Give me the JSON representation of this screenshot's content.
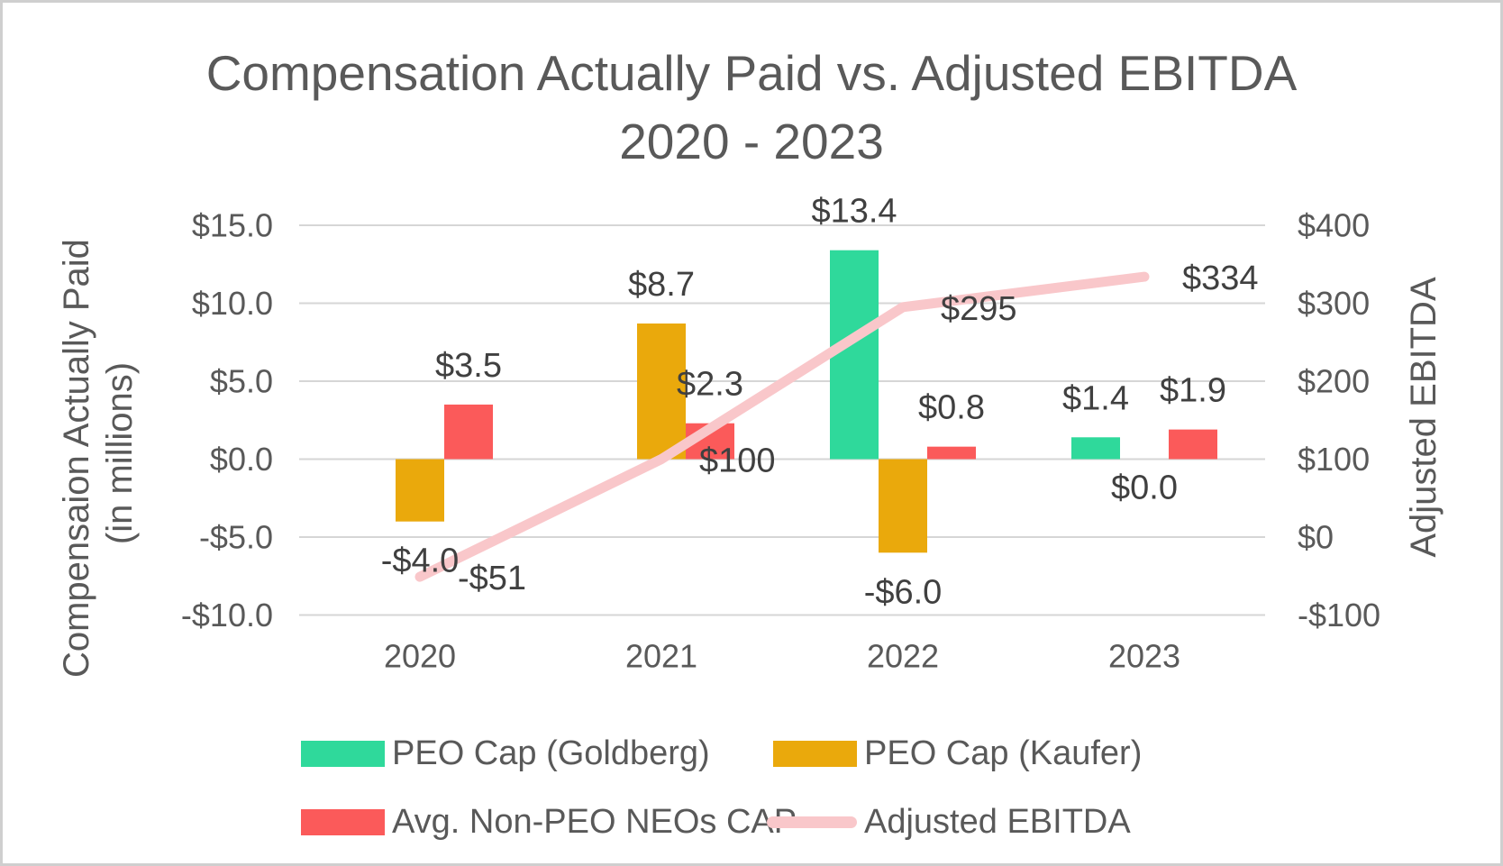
{
  "title": {
    "line1": "Compensation Actually Paid vs. Adjusted EBITDA",
    "line2": "2020 - 2023"
  },
  "chart_data": {
    "type": "combo-bar-line",
    "categories": [
      "2020",
      "2021",
      "2022",
      "2023"
    ],
    "series": [
      {
        "name": "PEO Cap (Goldberg)",
        "type": "bar",
        "axis": "left",
        "color": "#2FD99B",
        "values": [
          null,
          null,
          13.4,
          1.4
        ],
        "value_labels": [
          null,
          null,
          "$13.4",
          "$1.4"
        ]
      },
      {
        "name": "PEO Cap (Kaufer)",
        "type": "bar",
        "axis": "left",
        "color": "#EAA90C",
        "values": [
          -4.0,
          8.7,
          -6.0,
          0.0
        ],
        "value_labels": [
          "-$4.0",
          "$8.7",
          "-$6.0",
          "$0.0"
        ]
      },
      {
        "name": "Avg. Non-PEO NEOs CAP",
        "type": "bar",
        "axis": "left",
        "color": "#FB5A5A",
        "values": [
          3.5,
          2.3,
          0.8,
          1.9
        ],
        "value_labels": [
          "$3.5",
          "$2.3",
          "$0.8",
          "$1.9"
        ]
      },
      {
        "name": "Adjusted EBITDA",
        "type": "line",
        "axis": "right",
        "color": "#F9C7CA",
        "values": [
          -51,
          100,
          295,
          334
        ],
        "value_labels": [
          "-$51",
          "$100",
          "$295",
          "$334"
        ]
      }
    ],
    "left_axis": {
      "title_line1": "Compensaion Actually Paid",
      "title_line2": "(in millions)",
      "tick_labels": [
        "$15.0",
        "$10.0",
        "$5.0",
        "$0.0",
        "-$5.0",
        "-$10.0"
      ],
      "tick_values": [
        15,
        10,
        5,
        0,
        -5,
        -10
      ],
      "range": [
        -10,
        15
      ]
    },
    "right_axis": {
      "title": "Adjusted EBITDA",
      "tick_labels": [
        "$400",
        "$300",
        "$200",
        "$100",
        "$0",
        "-$100"
      ],
      "tick_values": [
        400,
        300,
        200,
        100,
        0,
        -100
      ],
      "range": [
        -100,
        400
      ]
    },
    "grid": true,
    "legend_position": "bottom"
  },
  "colors": {
    "title_text": "#595959",
    "axis_text": "#595959",
    "data_label_text": "#404040",
    "gridline": "#d6d6d6",
    "background": "#ffffff",
    "border": "#cfcfcf"
  }
}
